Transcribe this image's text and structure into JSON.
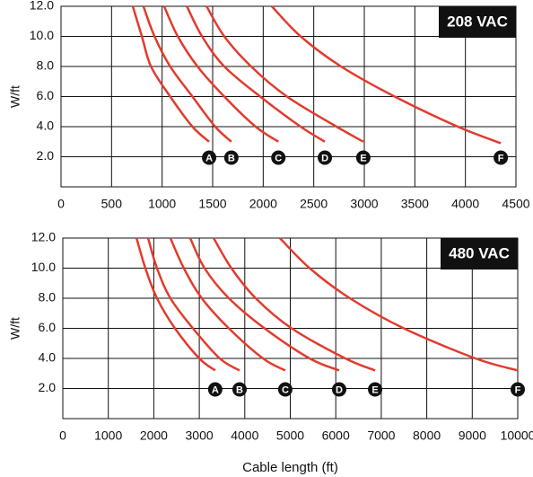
{
  "chart_data": [
    {
      "type": "line",
      "title": "208 VAC",
      "y_label": "W/ft",
      "xlim": [
        0,
        4500
      ],
      "xticks": [
        0,
        500,
        1000,
        1500,
        2000,
        2500,
        3000,
        3500,
        4000,
        4500
      ],
      "ylim": [
        0,
        12
      ],
      "yticks": [
        {
          "value": 2,
          "label": "2.0"
        },
        {
          "value": 4,
          "label": "4.0"
        },
        {
          "value": 6,
          "label": "6.0"
        },
        {
          "value": 8,
          "label": "8.0"
        },
        {
          "value": 10,
          "label": "10.0"
        },
        {
          "value": 12,
          "label": "12.0"
        }
      ],
      "grid": true,
      "series": [
        {
          "name": "A",
          "color": "#e23b2e",
          "x": [
            710,
            800,
            890,
            1080,
            1300,
            1465
          ],
          "values": [
            12,
            10,
            8,
            6,
            4,
            3
          ]
        },
        {
          "name": "B",
          "color": "#e23b2e",
          "x": [
            815,
            925,
            1080,
            1300,
            1525,
            1685
          ],
          "values": [
            12,
            10,
            8,
            6,
            4,
            3
          ]
        },
        {
          "name": "C",
          "color": "#e23b2e",
          "x": [
            1020,
            1155,
            1350,
            1615,
            1925,
            2150
          ],
          "values": [
            12,
            10,
            8,
            6,
            4,
            3
          ]
        },
        {
          "name": "D",
          "color": "#e23b2e",
          "x": [
            1245,
            1395,
            1615,
            1970,
            2370,
            2610
          ],
          "values": [
            12,
            10,
            8,
            6,
            4,
            3
          ]
        },
        {
          "name": "E",
          "color": "#e23b2e",
          "x": [
            1440,
            1615,
            1880,
            2235,
            2725,
            2990
          ],
          "values": [
            12,
            10,
            8,
            6,
            4,
            3
          ]
        },
        {
          "name": "F",
          "color": "#e23b2e",
          "x": [
            2085,
            2370,
            2770,
            3300,
            3925,
            4350
          ],
          "values": [
            12,
            10,
            8,
            6,
            4,
            2.9
          ]
        }
      ]
    },
    {
      "type": "line",
      "title": "480 VAC",
      "y_label": "W/ft",
      "x_label": "Cable length (ft)",
      "xlim": [
        0,
        10000
      ],
      "xticks": [
        0,
        1000,
        2000,
        3000,
        4000,
        5000,
        6000,
        7000,
        8000,
        9000,
        10000
      ],
      "ylim": [
        0,
        12
      ],
      "yticks": [
        {
          "value": 2,
          "label": "2.0"
        },
        {
          "value": 4,
          "label": "4.0"
        },
        {
          "value": 6,
          "label": "6.0"
        },
        {
          "value": 8,
          "label": "8.0"
        },
        {
          "value": 10,
          "label": "10.0"
        },
        {
          "value": 12,
          "label": "12.0"
        }
      ],
      "grid": true,
      "series": [
        {
          "name": "A",
          "color": "#e23b2e",
          "x": [
            1620,
            1815,
            2070,
            2465,
            3000,
            3350
          ],
          "values": [
            12,
            10,
            8,
            6,
            4,
            3.2
          ]
        },
        {
          "name": "B",
          "color": "#e23b2e",
          "x": [
            1875,
            2070,
            2365,
            2860,
            3450,
            3885
          ],
          "values": [
            12,
            10,
            8,
            6,
            4,
            3.2
          ]
        },
        {
          "name": "C",
          "color": "#e23b2e",
          "x": [
            2365,
            2660,
            3055,
            3650,
            4400,
            4890
          ],
          "values": [
            12,
            10,
            8,
            6,
            4,
            3.2
          ]
        },
        {
          "name": "D",
          "color": "#e23b2e",
          "x": [
            2800,
            3115,
            3650,
            4435,
            5425,
            6075
          ],
          "values": [
            12,
            10,
            8,
            6,
            4,
            3.2
          ]
        },
        {
          "name": "E",
          "color": "#e23b2e",
          "x": [
            3315,
            3705,
            4240,
            5030,
            6210,
            6865
          ],
          "values": [
            12,
            10,
            8,
            6,
            4,
            3.2
          ]
        },
        {
          "name": "F",
          "color": "#e23b2e",
          "x": [
            4770,
            5425,
            6310,
            7495,
            9070,
            10000
          ],
          "values": [
            12,
            10,
            8,
            6,
            4,
            3.2
          ]
        }
      ]
    }
  ]
}
